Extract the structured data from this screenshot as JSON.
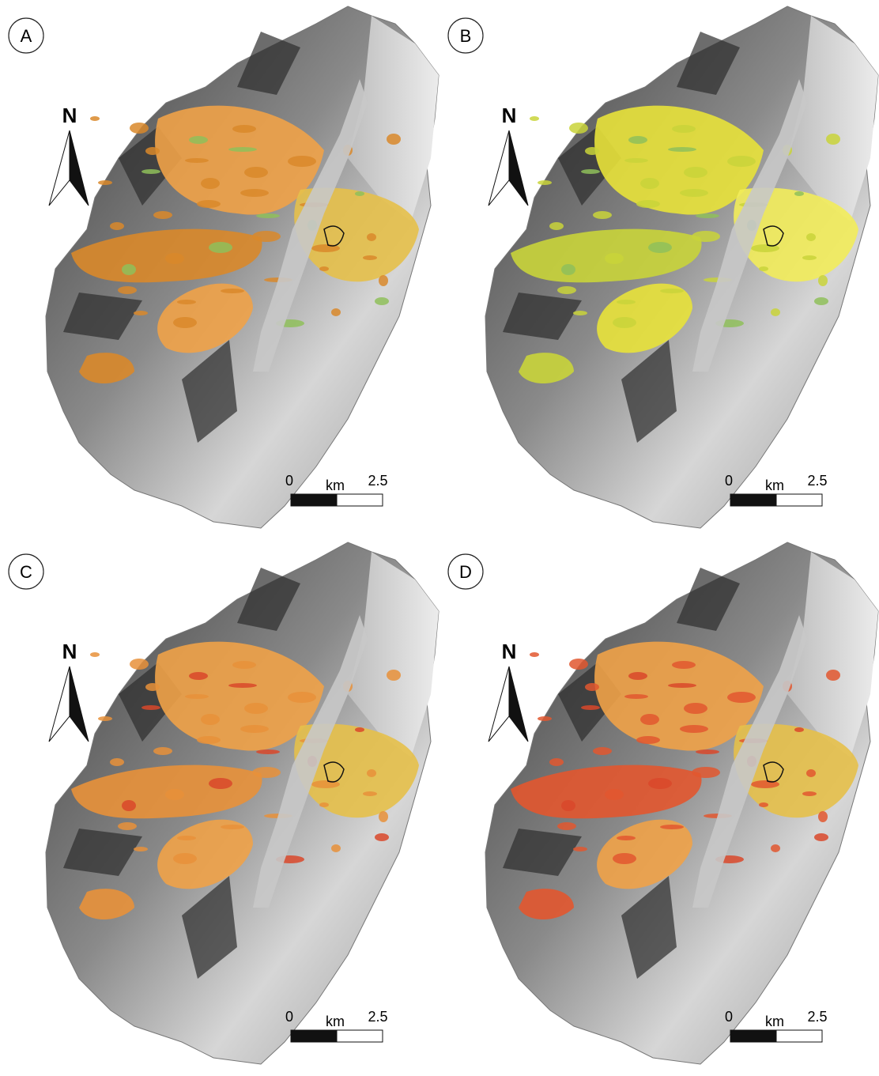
{
  "panels": [
    {
      "label": "A",
      "north": "N",
      "scale": {
        "start": 0,
        "unit": "km",
        "end": 2.5
      }
    },
    {
      "label": "B",
      "north": "N",
      "scale": {
        "start": 0,
        "unit": "km",
        "end": 2.5
      }
    },
    {
      "label": "C",
      "north": "N",
      "scale": {
        "start": 0,
        "unit": "km",
        "end": 2.5
      }
    },
    {
      "label": "D",
      "north": "N",
      "scale": {
        "start": 0,
        "unit": "km",
        "end": 2.5
      }
    }
  ]
}
